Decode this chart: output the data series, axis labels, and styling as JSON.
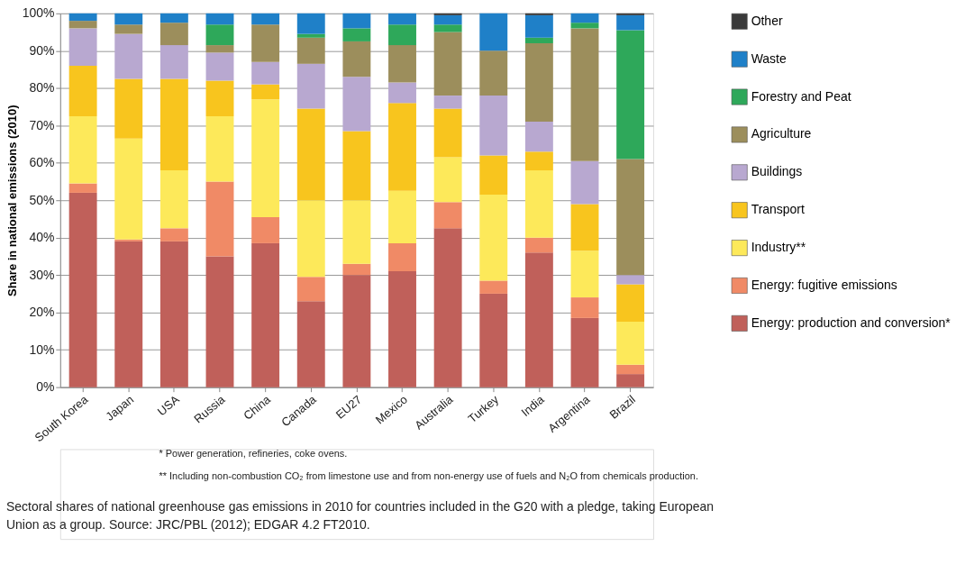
{
  "chart_data": {
    "type": "bar",
    "stacked": true,
    "ylabel": "Share in national emissions (2010)",
    "categories": [
      "South Korea",
      "Japan",
      "USA",
      "Russia",
      "China",
      "Canada",
      "EU27",
      "Mexico",
      "Australia",
      "Turkey",
      "India",
      "Argentina",
      "Brazil"
    ],
    "series": [
      {
        "name": "Energy: production and conversion*",
        "color": "#c0605a",
        "values": [
          52,
          39,
          39,
          35,
          38.5,
          23,
          30,
          31,
          42.5,
          25,
          36,
          18.5,
          3.5
        ]
      },
      {
        "name": "Energy: fugitive emissions",
        "color": "#f08a66",
        "values": [
          2.5,
          0.5,
          3.5,
          20,
          7,
          6.5,
          3,
          7.5,
          7,
          3.5,
          4,
          5.5,
          2.5
        ]
      },
      {
        "name": "Industry**",
        "color": "#fde95a",
        "values": [
          18,
          27,
          15.5,
          17.5,
          31.5,
          20.5,
          17,
          14,
          12,
          23,
          18,
          12.5,
          11.5
        ]
      },
      {
        "name": "Transport",
        "color": "#f8c51e",
        "values": [
          13.5,
          16,
          24.5,
          9.5,
          4,
          24.5,
          18.5,
          23.5,
          13,
          10.5,
          5,
          12.5,
          10
        ]
      },
      {
        "name": "Buildings",
        "color": "#b8a8d0",
        "values": [
          10,
          12,
          9,
          7.5,
          6,
          12,
          14.5,
          5.5,
          3.5,
          16,
          8,
          11.5,
          2.5
        ]
      },
      {
        "name": "Agriculture",
        "color": "#9c8e5c",
        "values": [
          2,
          2.5,
          6,
          2,
          10,
          7,
          9.5,
          10,
          17,
          12,
          21,
          35.5,
          31
        ]
      },
      {
        "name": "Forestry and Peat",
        "color": "#2ea85a",
        "values": [
          0,
          0,
          0,
          5.5,
          0,
          1,
          3.5,
          5.5,
          2,
          0,
          1.5,
          1.5,
          34.5
        ]
      },
      {
        "name": "Waste",
        "color": "#1f80c8",
        "values": [
          2,
          3,
          2.5,
          3,
          3,
          5.5,
          4,
          3,
          2.5,
          10,
          6,
          2.5,
          4
        ]
      },
      {
        "name": "Other",
        "color": "#3a3a3a",
        "values": [
          0,
          0,
          0,
          0,
          0,
          0,
          0,
          0,
          0.5,
          0,
          0.5,
          0,
          0.5
        ]
      }
    ],
    "ylim": [
      0,
      100
    ],
    "yticks": [
      {
        "value": 0,
        "label": "0%"
      },
      {
        "value": 10,
        "label": "10%"
      },
      {
        "value": 20,
        "label": "20%"
      },
      {
        "value": 30,
        "label": "30%"
      },
      {
        "value": 40,
        "label": "40%"
      },
      {
        "value": 50,
        "label": "50%"
      },
      {
        "value": 60,
        "label": "60%"
      },
      {
        "value": 70,
        "label": "70%"
      },
      {
        "value": 80,
        "label": "80%"
      },
      {
        "value": 90,
        "label": "90%"
      },
      {
        "value": 100,
        "label": "100%"
      }
    ],
    "grid": "y",
    "legend": "right",
    "annotations": [
      "* Power generation, refineries, coke ovens.",
      "** Including non-combustion CO₂ from limestone use and from non-energy use of fuels and N₂O from chemicals production.",
      "Sectoral shares of national greenhouse gas emissions in 2010 for countries included in the G20 with a pledge, taking European Union as a group. Source: JRC/PBL (2012); EDGAR 4.2 FT2010."
    ]
  }
}
